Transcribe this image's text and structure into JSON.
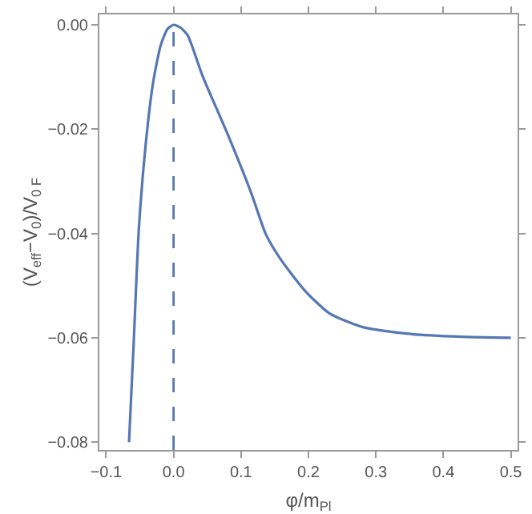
{
  "chart_data": {
    "type": "line",
    "xlabel": "φ/m$_{Pl}$",
    "ylabel": "(V$_{eff}$−V$_{0}$)/V$_{0 F}$",
    "series": [
      {
        "color": "#5577b3",
        "x": [
          -0.066,
          -0.059,
          -0.0515,
          -0.041,
          -0.03,
          -0.019,
          -0.009,
          0,
          0.01,
          0.021,
          0.043,
          0.079,
          0.115,
          0.137,
          0.159,
          0.195,
          0.231,
          0.282,
          0.354,
          0.427,
          0.5
        ],
        "values": [
          -0.08,
          -0.0607,
          -0.0392,
          -0.0225,
          -0.0108,
          -0.0039,
          -0.0008,
          0,
          -0.0005,
          -0.002,
          -0.0098,
          -0.0206,
          -0.0322,
          -0.0402,
          -0.045,
          -0.051,
          -0.0553,
          -0.058,
          -0.0593,
          -0.0598,
          -0.06
        ]
      }
    ],
    "ref_lines": [
      {
        "axis": "x",
        "value": 0,
        "color": "#5577b3",
        "line_style": "dashed"
      }
    ],
    "xlim": [
      -0.11,
      0.51
    ],
    "ylim": [
      -0.0815,
      0.002
    ],
    "xticks": [
      {
        "value": -0.1,
        "label": "−0.1"
      },
      {
        "value": 0,
        "label": "0.0"
      },
      {
        "value": 0.1,
        "label": "0.1"
      },
      {
        "value": 0.2,
        "label": "0.2"
      },
      {
        "value": 0.3,
        "label": "0.3"
      },
      {
        "value": 0.4,
        "label": "0.4"
      },
      {
        "value": 0.5,
        "label": "0.5"
      }
    ],
    "yticks": [
      {
        "value": 0,
        "label": "0.00"
      },
      {
        "value": -0.02,
        "label": "−0.02"
      },
      {
        "value": -0.04,
        "label": "−0.04"
      },
      {
        "value": -0.06,
        "label": "−0.06"
      },
      {
        "value": -0.08,
        "label": "−0.08"
      }
    ],
    "grid": false,
    "marker": "none",
    "line_style": "solid"
  }
}
